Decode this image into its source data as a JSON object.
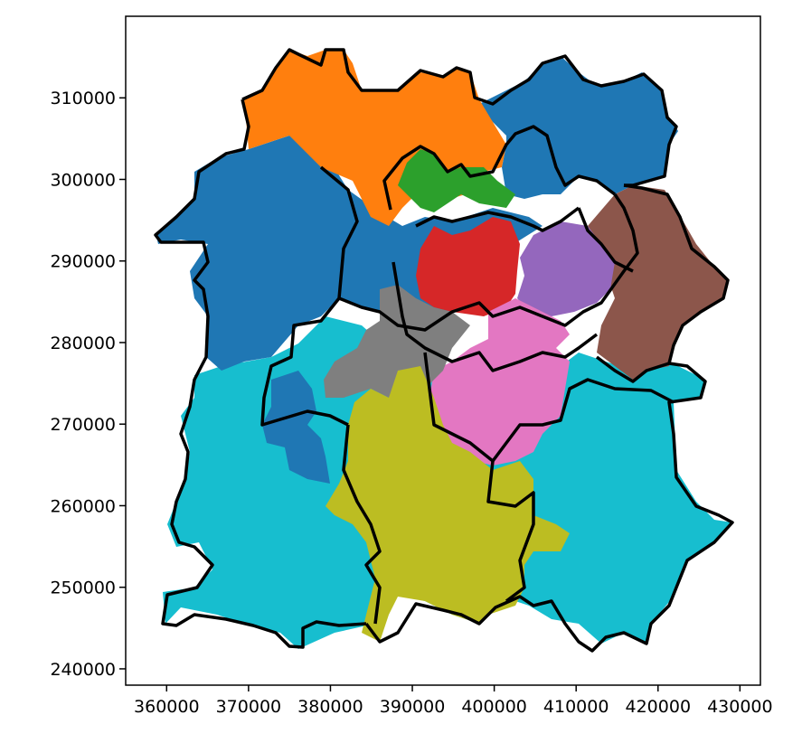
{
  "chart_data": {
    "type": "map",
    "title": "",
    "xlabel": "",
    "ylabel": "",
    "xlim": [
      355000,
      432500
    ],
    "ylim": [
      238000,
      320000
    ],
    "x_ticks": [
      360000,
      370000,
      380000,
      390000,
      400000,
      410000,
      420000,
      430000
    ],
    "y_ticks": [
      240000,
      250000,
      260000,
      270000,
      280000,
      290000,
      300000,
      310000
    ],
    "x_tick_labels": [
      "360000",
      "370000",
      "380000",
      "390000",
      "400000",
      "410000",
      "420000",
      "430000"
    ],
    "y_tick_labels": [
      "240000",
      "250000",
      "260000",
      "270000",
      "280000",
      "290000",
      "300000",
      "310000"
    ],
    "grid": false,
    "legend": "none",
    "region_colors": {
      "blue": "#1f77b4",
      "orange": "#ff7f0e",
      "green": "#2ca02c",
      "red": "#d62728",
      "purple": "#9467bd",
      "brown": "#8c564b",
      "pink": "#e377c2",
      "gray": "#7f7f7f",
      "olive": "#bcbd22",
      "cyan": "#17becf"
    },
    "boundary_color": "#000000"
  }
}
